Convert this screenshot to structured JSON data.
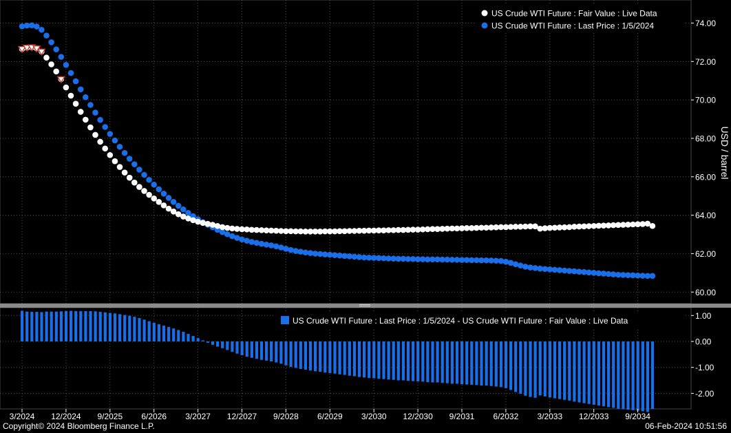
{
  "footer": {
    "copyright": "Copyright© 2024 Bloomberg Finance L.P.",
    "timestamp": "06-Feb-2024 10:51:56"
  },
  "colors": {
    "background": "#000000",
    "fair_value": "#ffffff",
    "last_price": "#1a6ee8",
    "marker_outline": "#c0392b",
    "grid": "#555555",
    "divider": "#9a9a9a"
  },
  "chart_data": [
    {
      "type": "scatter",
      "ylabel": "USD / barrel",
      "ylim": [
        59.4,
        75.2
      ],
      "yticks": [
        60,
        62,
        64,
        66,
        68,
        70,
        72,
        74
      ],
      "ytick_labels": [
        "60.00",
        "62.00",
        "64.00",
        "66.00",
        "68.00",
        "70.00",
        "72.00",
        "74.00"
      ],
      "grid": true,
      "legend_position": "top-right",
      "x_months": [
        "3/2024",
        "4/2024",
        "5/2024",
        "6/2024",
        "7/2024",
        "8/2024",
        "9/2024",
        "10/2024",
        "11/2024",
        "12/2024",
        "1/2025",
        "2/2025",
        "3/2025",
        "4/2025",
        "5/2025",
        "6/2025",
        "7/2025",
        "8/2025",
        "9/2025",
        "10/2025",
        "11/2025",
        "12/2025",
        "1/2026",
        "2/2026",
        "3/2026",
        "4/2026",
        "5/2026",
        "6/2026",
        "7/2026",
        "8/2026",
        "9/2026",
        "10/2026",
        "11/2026",
        "12/2026",
        "1/2027",
        "2/2027",
        "3/2027",
        "4/2027",
        "5/2027",
        "6/2027",
        "7/2027",
        "8/2027",
        "9/2027",
        "10/2027",
        "11/2027",
        "12/2027",
        "1/2028",
        "2/2028",
        "3/2028",
        "4/2028",
        "5/2028",
        "6/2028",
        "7/2028",
        "8/2028",
        "9/2028",
        "10/2028",
        "11/2028",
        "12/2028",
        "1/2029",
        "2/2029",
        "3/2029",
        "4/2029",
        "5/2029",
        "6/2029",
        "7/2029",
        "8/2029",
        "9/2029",
        "10/2029",
        "11/2029",
        "12/2029",
        "1/2030",
        "2/2030",
        "3/2030",
        "4/2030",
        "5/2030",
        "6/2030",
        "7/2030",
        "8/2030",
        "9/2030",
        "10/2030",
        "11/2030",
        "12/2030",
        "1/2031",
        "2/2031",
        "3/2031",
        "4/2031",
        "5/2031",
        "6/2031",
        "7/2031",
        "8/2031",
        "9/2031",
        "10/2031",
        "11/2031",
        "12/2031",
        "1/2032",
        "2/2032",
        "3/2032",
        "4/2032",
        "5/2032",
        "6/2032",
        "7/2032",
        "8/2032",
        "9/2032",
        "10/2032",
        "11/2032",
        "12/2032",
        "1/2033",
        "2/2033",
        "3/2033",
        "4/2033",
        "5/2033",
        "6/2033",
        "7/2033",
        "8/2033",
        "9/2033",
        "10/2033",
        "11/2033",
        "12/2033",
        "1/2034",
        "2/2034",
        "3/2034",
        "4/2034",
        "5/2034",
        "6/2034",
        "7/2034",
        "8/2034",
        "9/2034",
        "10/2034",
        "11/2034",
        "12/2034"
      ],
      "series": [
        {
          "name": "US Crude WTI Future : Fair Value : Live Data",
          "color": "#ffffff",
          "highlighted_indices": [
            0,
            1,
            2,
            3,
            4,
            8
          ],
          "values": [
            72.65,
            72.72,
            72.74,
            72.68,
            72.52,
            72.2,
            71.85,
            71.48,
            71.08,
            70.65,
            70.22,
            69.8,
            69.38,
            68.97,
            68.57,
            68.18,
            67.82,
            67.47,
            67.13,
            66.81,
            66.51,
            66.22,
            65.95,
            65.7,
            65.47,
            65.26,
            65.06,
            64.87,
            64.69,
            64.51,
            64.34,
            64.19,
            64.05,
            63.93,
            63.83,
            63.74,
            63.66,
            63.6,
            63.55,
            63.5,
            63.44,
            63.38,
            63.34,
            63.31,
            63.29,
            63.27,
            63.26,
            63.24,
            63.23,
            63.22,
            63.21,
            63.2,
            63.19,
            63.18,
            63.17,
            63.17,
            63.16,
            63.16,
            63.15,
            63.15,
            63.15,
            63.15,
            63.16,
            63.16,
            63.16,
            63.17,
            63.17,
            63.18,
            63.18,
            63.19,
            63.19,
            63.2,
            63.2,
            63.21,
            63.21,
            63.22,
            63.22,
            63.23,
            63.23,
            63.24,
            63.25,
            63.25,
            63.26,
            63.27,
            63.28,
            63.28,
            63.29,
            63.3,
            63.31,
            63.31,
            63.32,
            63.33,
            63.33,
            63.34,
            63.35,
            63.35,
            63.36,
            63.37,
            63.38,
            63.38,
            63.39,
            63.4,
            63.4,
            63.41,
            63.42,
            63.42,
            63.3,
            63.32,
            63.34,
            63.35,
            63.36,
            63.37,
            63.38,
            63.4,
            63.41,
            63.42,
            63.43,
            63.44,
            63.45,
            63.46,
            63.47,
            63.48,
            63.49,
            63.5,
            63.51,
            63.52,
            63.53,
            63.54,
            63.56,
            63.44
          ]
        },
        {
          "name": "US Crude WTI Future : Last Price : 1/5/2024",
          "color": "#1a6ee8",
          "values": [
            73.83,
            73.87,
            73.88,
            73.82,
            73.65,
            73.35,
            73.0,
            72.63,
            72.24,
            71.82,
            71.4,
            70.97,
            70.55,
            70.14,
            69.74,
            69.34,
            68.96,
            68.59,
            68.23,
            67.89,
            67.56,
            67.24,
            66.94,
            66.65,
            66.37,
            66.1,
            65.84,
            65.59,
            65.35,
            65.12,
            64.9,
            64.69,
            64.49,
            64.3,
            64.12,
            63.95,
            63.79,
            63.64,
            63.5,
            63.37,
            63.24,
            63.12,
            63.01,
            62.91,
            62.82,
            62.74,
            62.67,
            62.61,
            62.56,
            62.51,
            62.47,
            62.43,
            62.38,
            62.32,
            62.25,
            62.19,
            62.14,
            62.1,
            62.06,
            62.03,
            62.0,
            61.98,
            61.96,
            61.94,
            61.92,
            61.9,
            61.88,
            61.86,
            61.84,
            61.82,
            61.8,
            61.79,
            61.78,
            61.77,
            61.76,
            61.75,
            61.74,
            61.73,
            61.73,
            61.72,
            61.72,
            61.71,
            61.71,
            61.7,
            61.7,
            61.7,
            61.69,
            61.69,
            61.68,
            61.68,
            61.67,
            61.67,
            61.66,
            61.66,
            61.65,
            61.65,
            61.64,
            61.63,
            61.62,
            61.58,
            61.52,
            61.45,
            61.38,
            61.32,
            61.28,
            61.25,
            61.22,
            61.2,
            61.18,
            61.16,
            61.14,
            61.12,
            61.1,
            61.08,
            61.06,
            61.04,
            61.02,
            61.0,
            60.98,
            60.96,
            60.94,
            60.92,
            60.9,
            60.89,
            60.88,
            60.87,
            60.86,
            60.85,
            60.84,
            60.84
          ]
        }
      ]
    },
    {
      "type": "bar",
      "ylim": [
        -2.6,
        1.3
      ],
      "yticks": [
        -2,
        -1,
        0,
        1
      ],
      "ytick_labels": [
        "-2.00",
        "-1.00",
        "0.00",
        "1.00"
      ],
      "legend_position": "top-right",
      "x_tick_labels": [
        "3/2024",
        "12/2024",
        "9/2025",
        "6/2026",
        "3/2027",
        "12/2027",
        "9/2028",
        "6/2029",
        "3/2030",
        "12/2030",
        "9/2031",
        "6/2032",
        "3/2033",
        "12/2033",
        "9/2034"
      ],
      "x_tick_indices": [
        0,
        9,
        18,
        27,
        36,
        45,
        54,
        63,
        72,
        81,
        90,
        99,
        108,
        117,
        126
      ],
      "series": [
        {
          "name": "US Crude WTI Future : Last Price : 1/5/2024 - US Crude WTI Future : Fair Value : Live Data",
          "color": "#1a6ee8",
          "values": [
            1.18,
            1.15,
            1.14,
            1.14,
            1.13,
            1.15,
            1.15,
            1.15,
            1.16,
            1.17,
            1.18,
            1.17,
            1.17,
            1.17,
            1.17,
            1.16,
            1.14,
            1.12,
            1.1,
            1.08,
            1.05,
            1.02,
            0.99,
            0.95,
            0.9,
            0.84,
            0.78,
            0.72,
            0.66,
            0.61,
            0.56,
            0.5,
            0.44,
            0.37,
            0.29,
            0.21,
            0.13,
            0.04,
            -0.05,
            -0.13,
            -0.2,
            -0.26,
            -0.33,
            -0.4,
            -0.47,
            -0.53,
            -0.59,
            -0.63,
            -0.67,
            -0.71,
            -0.74,
            -0.77,
            -0.81,
            -0.86,
            -0.92,
            -0.98,
            -1.02,
            -1.06,
            -1.09,
            -1.12,
            -1.15,
            -1.17,
            -1.2,
            -1.22,
            -1.24,
            -1.27,
            -1.29,
            -1.32,
            -1.34,
            -1.37,
            -1.39,
            -1.41,
            -1.42,
            -1.44,
            -1.45,
            -1.47,
            -1.48,
            -1.5,
            -1.5,
            -1.52,
            -1.53,
            -1.54,
            -1.55,
            -1.57,
            -1.58,
            -1.58,
            -1.6,
            -1.61,
            -1.63,
            -1.63,
            -1.65,
            -1.66,
            -1.67,
            -1.68,
            -1.7,
            -1.7,
            -1.72,
            -1.74,
            -1.76,
            -1.8,
            -1.87,
            -1.95,
            -2.02,
            -2.09,
            -2.14,
            -2.17,
            -2.08,
            -2.12,
            -2.16,
            -2.19,
            -2.22,
            -2.25,
            -2.28,
            -2.32,
            -2.35,
            -2.38,
            -2.41,
            -2.44,
            -2.47,
            -2.5,
            -2.53,
            -2.56,
            -2.59,
            -2.61,
            -2.63,
            -2.65,
            -2.67,
            -2.69,
            -2.72,
            -2.6
          ]
        }
      ]
    }
  ]
}
